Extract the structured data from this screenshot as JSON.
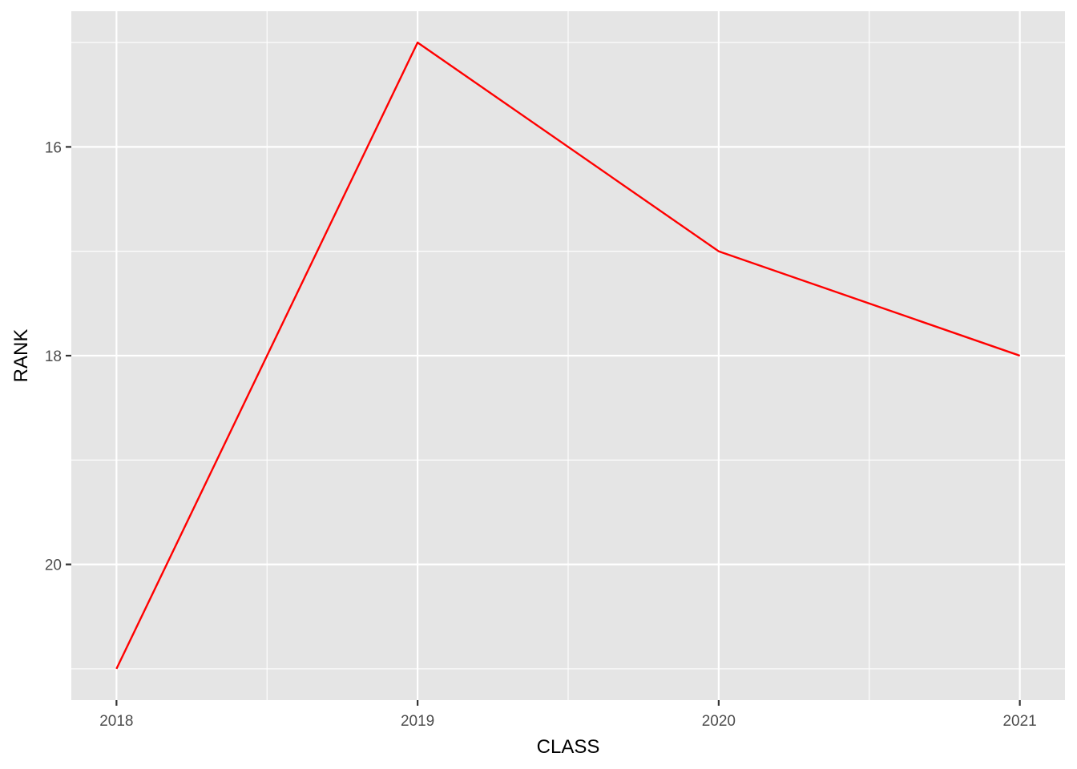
{
  "chart_data": {
    "type": "line",
    "title": "",
    "xlabel": "CLASS",
    "ylabel": "RANK",
    "x": [
      2018,
      2019,
      2020,
      2021
    ],
    "x_ticks": [
      "2018",
      "2019",
      "2020",
      "2021"
    ],
    "y_ticks": [
      "16",
      "18",
      "20"
    ],
    "y_tick_values": [
      16,
      18,
      20
    ],
    "y_reversed": true,
    "xlim": [
      2017.85,
      2021.15
    ],
    "ylim": [
      14.7,
      21.3
    ],
    "grid": true,
    "legend": "none",
    "series": [
      {
        "values": [
          21,
          15,
          17,
          18
        ],
        "color": "#ff0000"
      }
    ],
    "colors": {
      "panel": "#e5e5e5",
      "grid": "#ffffff",
      "tick_label": "#4d4d4d"
    }
  }
}
